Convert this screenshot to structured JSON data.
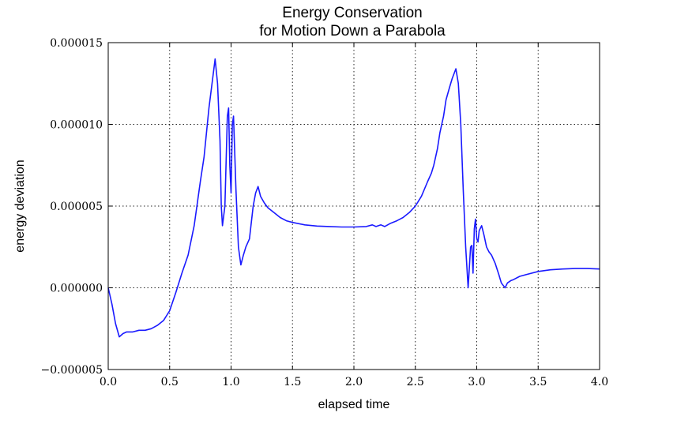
{
  "chart_data": {
    "type": "line",
    "title": "Energy Conservation",
    "subtitle": "for Motion Down a Parabola",
    "xlabel": "elapsed time",
    "ylabel": "energy deviation",
    "xlim": [
      0.0,
      4.0
    ],
    "ylim": [
      -5e-06,
      1.5e-05
    ],
    "xticks": [
      "0.0",
      "0.5",
      "1.0",
      "1.5",
      "2.0",
      "2.5",
      "3.0",
      "3.5",
      "4.0"
    ],
    "yticks": [
      "−0.000005",
      "0.000000",
      "0.000005",
      "0.000010",
      "0.000015"
    ],
    "grid": true,
    "line_color": "#1a1aff",
    "series": [
      {
        "x": [
          0.0,
          0.03,
          0.06,
          0.09,
          0.12,
          0.15,
          0.2,
          0.25,
          0.3,
          0.35,
          0.4,
          0.45,
          0.5,
          0.55,
          0.6,
          0.65,
          0.7,
          0.75,
          0.78,
          0.82,
          0.85,
          0.87,
          0.89,
          0.91,
          0.92,
          0.93,
          0.95,
          0.97,
          0.98,
          0.99,
          1.0,
          1.01,
          1.02,
          1.04,
          1.06,
          1.08,
          1.1,
          1.12,
          1.15,
          1.18,
          1.2,
          1.22,
          1.24,
          1.27,
          1.3,
          1.35,
          1.4,
          1.45,
          1.5,
          1.6,
          1.7,
          1.8,
          1.9,
          2.0,
          2.1,
          2.15,
          2.18,
          2.22,
          2.25,
          2.3,
          2.35,
          2.4,
          2.45,
          2.5,
          2.55,
          2.6,
          2.63,
          2.65,
          2.68,
          2.7,
          2.73,
          2.75,
          2.78,
          2.8,
          2.83,
          2.85,
          2.87,
          2.89,
          2.91,
          2.93,
          2.95,
          2.96,
          2.97,
          2.98,
          2.99,
          3.0,
          3.01,
          3.02,
          3.04,
          3.06,
          3.08,
          3.1,
          3.12,
          3.15,
          3.18,
          3.2,
          3.23,
          3.25,
          3.28,
          3.3,
          3.35,
          3.4,
          3.5,
          3.6,
          3.7,
          3.8,
          3.9,
          4.0
        ],
        "y": [
          0.0,
          -1e-06,
          -2.2e-06,
          -3e-06,
          -2.8e-06,
          -2.7e-06,
          -2.7e-06,
          -2.6e-06,
          -2.6e-06,
          -2.5e-06,
          -2.3e-06,
          -2e-06,
          -1.4e-06,
          -3e-07,
          9e-07,
          2e-06,
          3.8e-06,
          6.5e-06,
          8e-06,
          1.1e-05,
          1.28e-05,
          1.4e-05,
          1.25e-05,
          9e-06,
          5e-06,
          3.8e-06,
          5e-06,
          1.05e-05,
          1.1e-05,
          7.5e-06,
          5.8e-06,
          1e-05,
          1.05e-05,
          6e-06,
          2.5e-06,
          1.4e-06,
          2e-06,
          2.5e-06,
          3e-06,
          5e-06,
          5.8e-06,
          6.2e-06,
          5.6e-06,
          5.2e-06,
          4.9e-06,
          4.6e-06,
          4.3e-06,
          4.1e-06,
          4e-06,
          3.85e-06,
          3.78e-06,
          3.75e-06,
          3.72e-06,
          3.72e-06,
          3.75e-06,
          3.85e-06,
          3.75e-06,
          3.85e-06,
          3.75e-06,
          3.95e-06,
          4.1e-06,
          4.3e-06,
          4.6e-06,
          5e-06,
          5.6e-06,
          6.5e-06,
          7e-06,
          7.5e-06,
          8.5e-06,
          9.5e-06,
          1.05e-05,
          1.15e-05,
          1.23e-05,
          1.28e-05,
          1.34e-05,
          1.25e-05,
          1e-05,
          6e-06,
          2.5e-06,
          0.0,
          2.5e-06,
          2.6e-06,
          9e-07,
          3.6e-06,
          4.2e-06,
          3e-06,
          2.8e-06,
          3.5e-06,
          3.8e-06,
          3.2e-06,
          2.5e-06,
          2.2e-06,
          2e-06,
          1.5e-06,
          8e-07,
          3e-07,
          0.0,
          3e-07,
          4.5e-07,
          5e-07,
          7e-07,
          8e-07,
          1e-06,
          1.1e-06,
          1.15e-06,
          1.18e-06,
          1.18e-06,
          1.15e-06
        ]
      }
    ]
  }
}
